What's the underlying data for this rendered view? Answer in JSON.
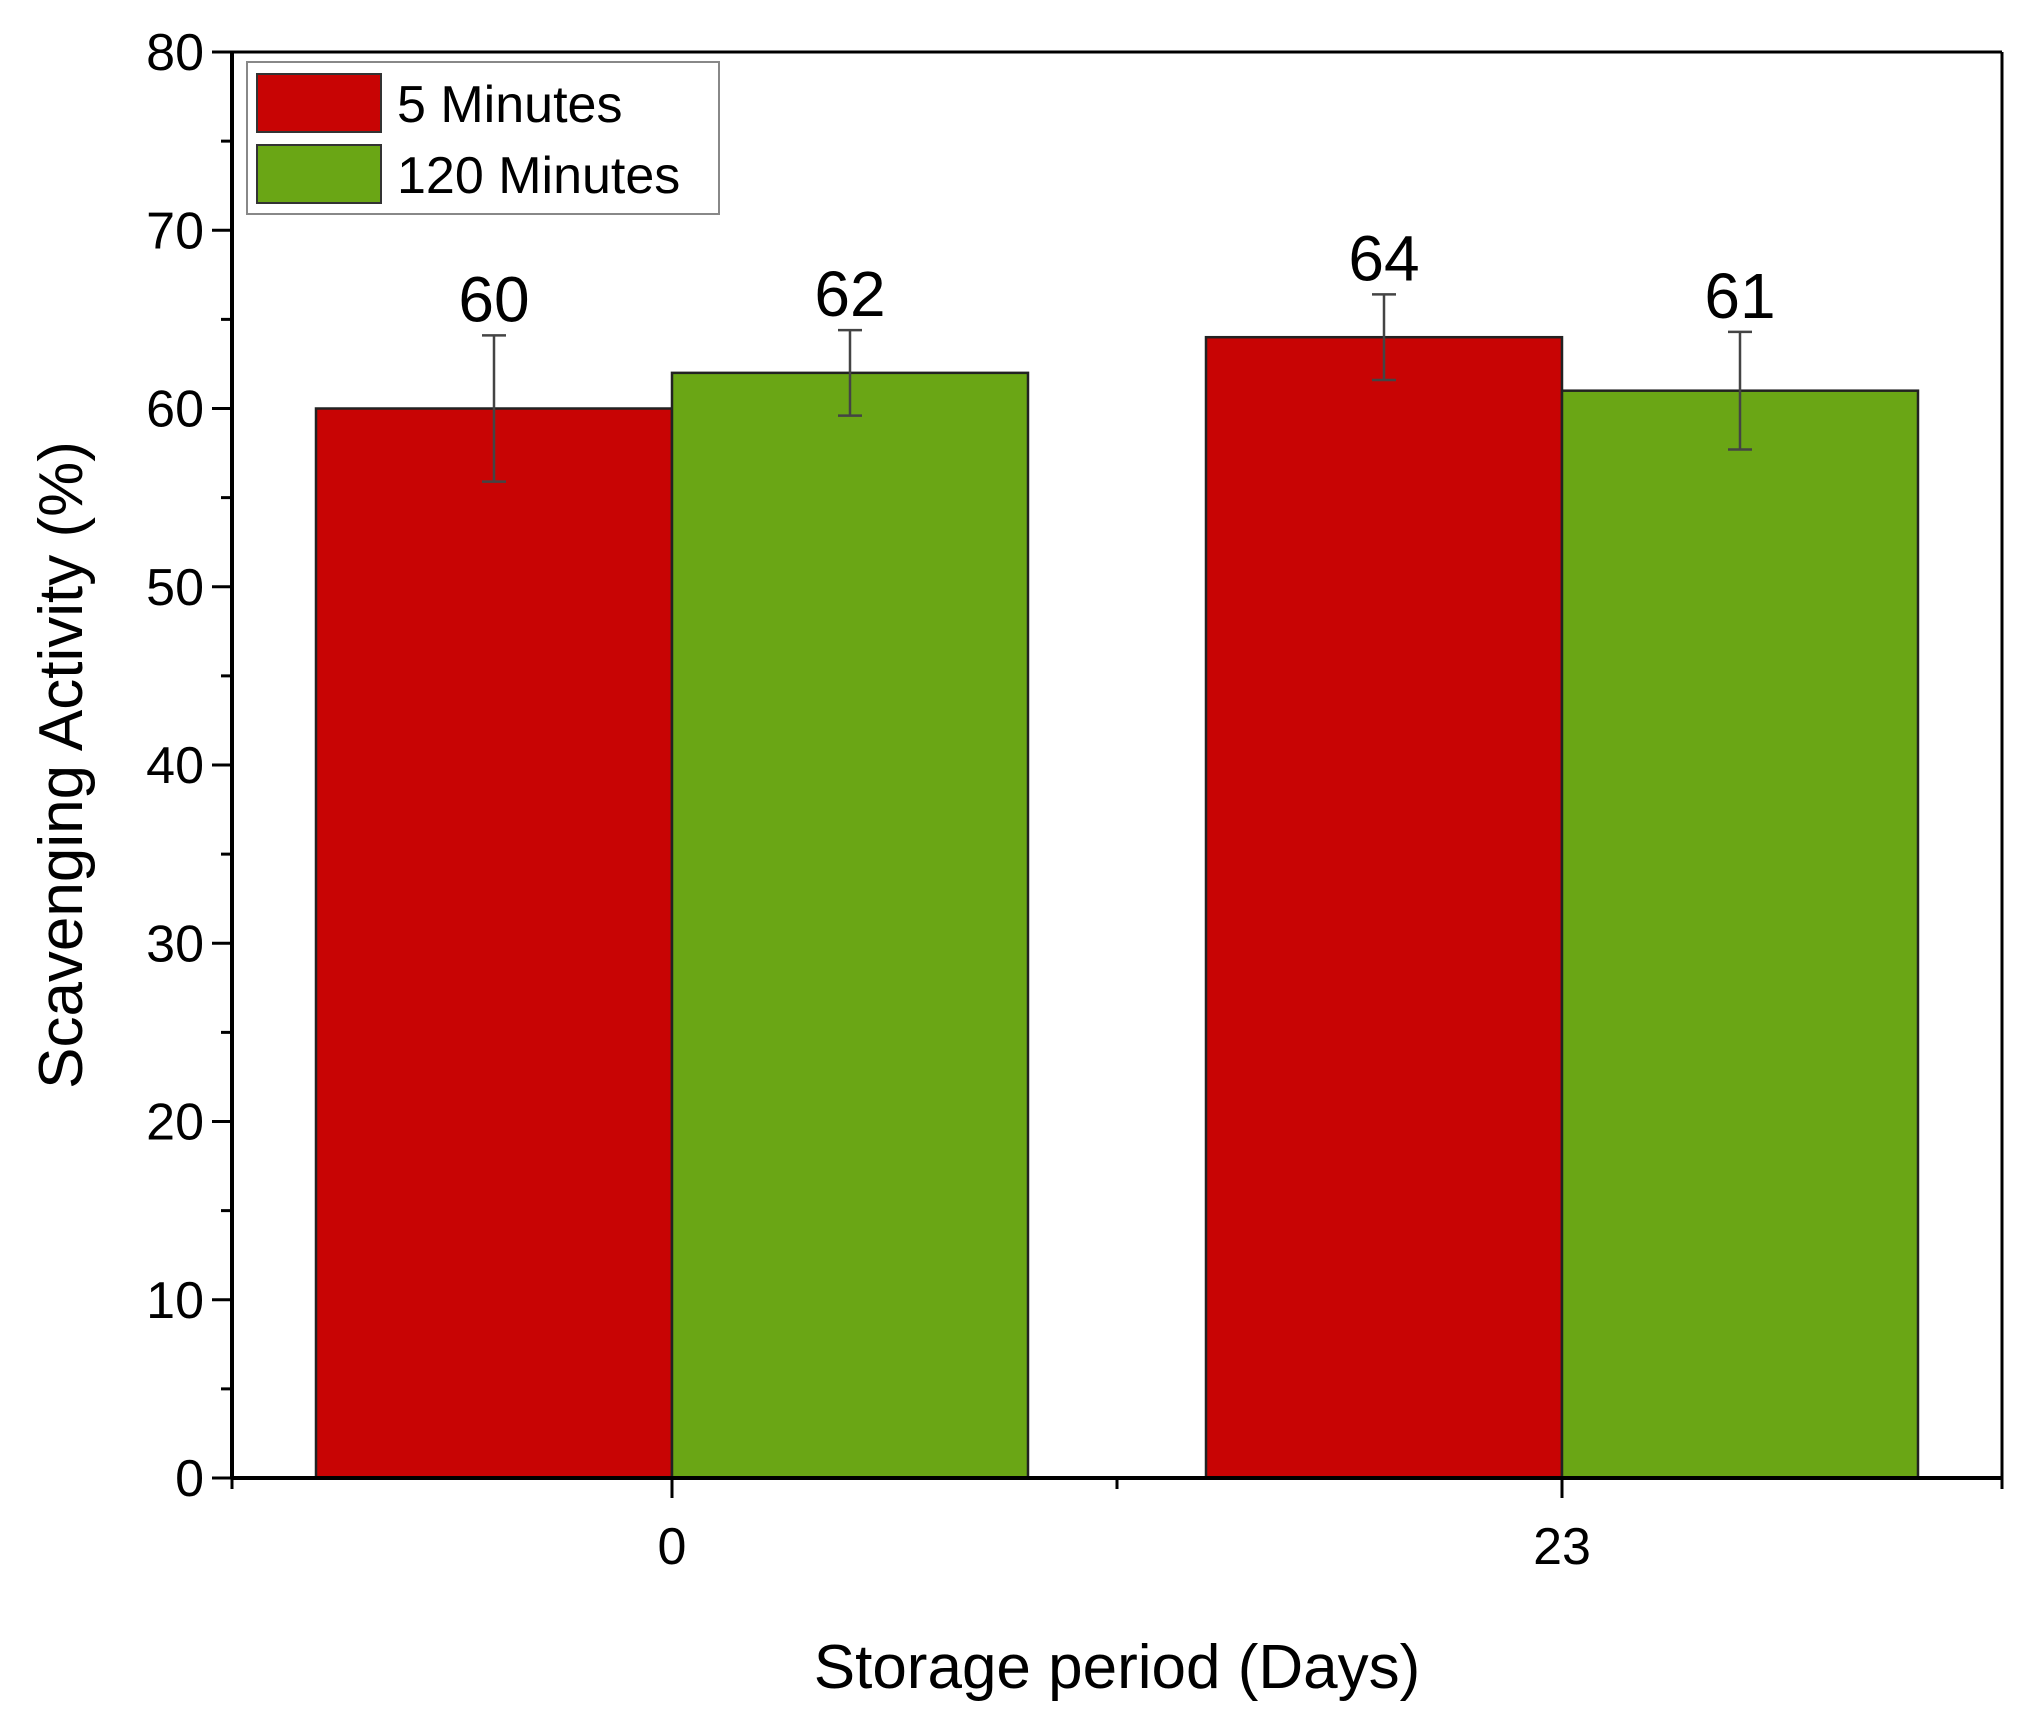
{
  "chart_data": {
    "type": "bar",
    "categories": [
      "0",
      "23"
    ],
    "series": [
      {
        "name": "5 Minutes",
        "color": "#c80404",
        "values": [
          60,
          64
        ],
        "errors": [
          4.1,
          2.4
        ],
        "labels": [
          "60",
          "64"
        ]
      },
      {
        "name": "120 Minutes",
        "color": "#6aa615",
        "values": [
          62,
          61
        ],
        "errors": [
          2.4,
          3.3
        ],
        "labels": [
          "62",
          "61"
        ]
      }
    ],
    "xlabel": "Storage period (Days)",
    "ylabel": "Scavenging Activity (%)",
    "ylim": [
      0,
      80
    ],
    "yticks": [
      "0",
      "10",
      "20",
      "30",
      "40",
      "50",
      "60",
      "70",
      "80"
    ],
    "grid": false,
    "legend_position": "top-left"
  }
}
